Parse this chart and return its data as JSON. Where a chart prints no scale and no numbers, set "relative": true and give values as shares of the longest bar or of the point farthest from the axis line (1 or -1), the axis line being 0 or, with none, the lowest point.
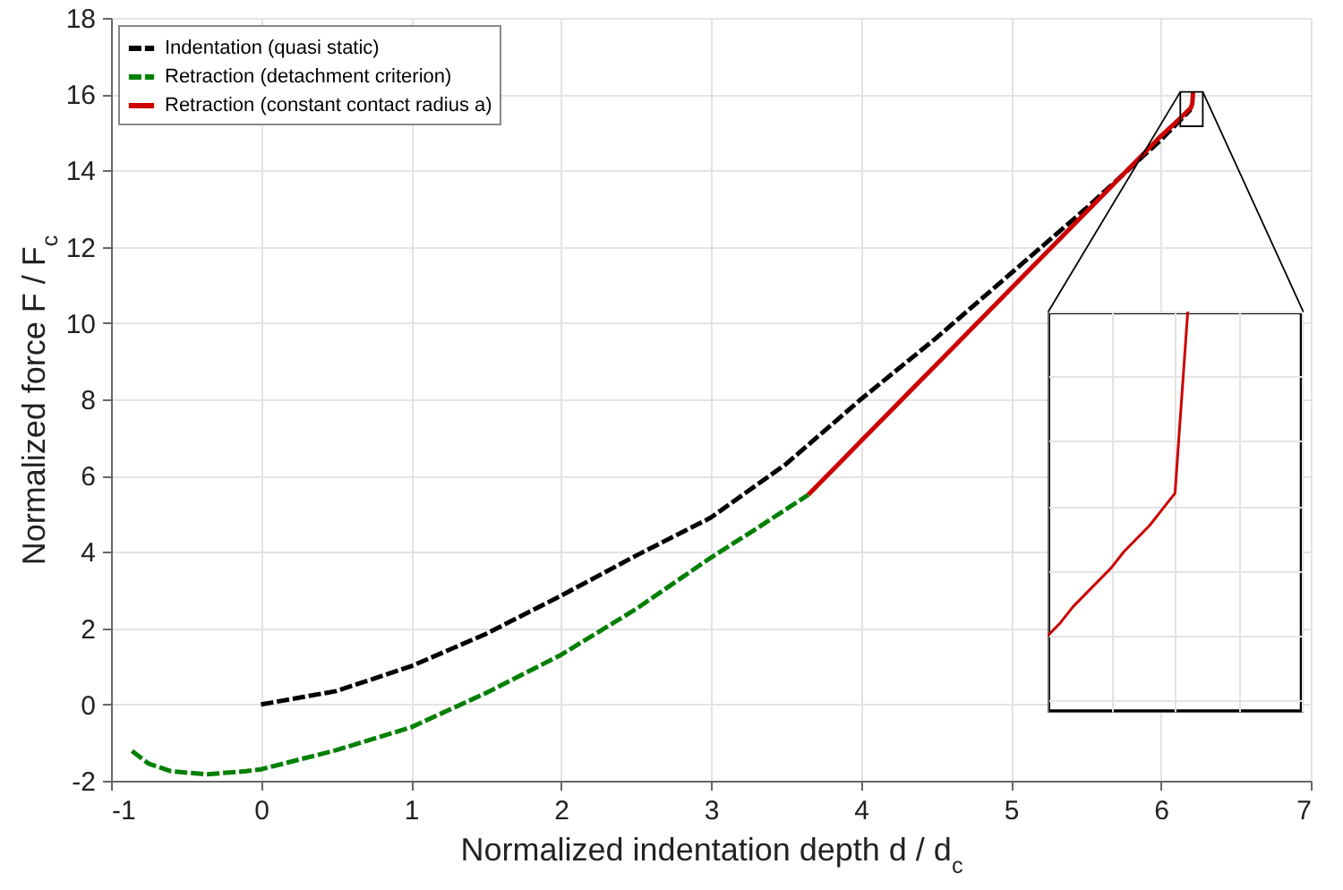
{
  "chart_data": [
    {
      "type": "line",
      "xlabel": "Normalized indentation depth  d / d$_{c}$",
      "ylabel": "Normalized force  F / F$_{c}$",
      "xlim": [
        -1,
        7
      ],
      "xticks": [
        -1,
        0,
        1,
        2,
        3,
        4,
        5,
        6,
        7
      ],
      "ylim": [
        -2,
        18
      ],
      "yticks": [
        -2,
        0,
        2,
        4,
        6,
        8,
        10,
        12,
        14,
        16,
        18
      ],
      "grid": true,
      "legend": "top left",
      "marker": "none",
      "series": [
        {
          "name": "Indentation (quasi static)",
          "color": "#000000",
          "line_style": "dashed",
          "x": [
            0,
            0.5,
            1,
            1.5,
            2,
            2.5,
            3,
            3.5,
            4,
            4.5,
            5,
            5.5,
            6,
            6.2
          ],
          "values": [
            0,
            0.35,
            1,
            1.85,
            2.85,
            3.9,
            4.9,
            6.3,
            8.0,
            9.6,
            11.3,
            13.0,
            14.8,
            15.6
          ]
        },
        {
          "name": "Retraction (detachment criterion)",
          "color": "#008000",
          "line_style": "dashed",
          "x": [
            -0.86,
            -0.75,
            -0.6,
            -0.36,
            -0.1,
            0,
            0.5,
            1,
            1.5,
            2,
            2.5,
            3,
            3.3,
            3.65
          ],
          "values": [
            -1.22,
            -1.55,
            -1.75,
            -1.83,
            -1.75,
            -1.7,
            -1.2,
            -0.6,
            0.3,
            1.3,
            2.5,
            3.85,
            4.6,
            5.5
          ]
        },
        {
          "name": "Retraction (constant contact radius a)",
          "color": "#cc0000",
          "line_style": "solid",
          "x": [
            3.65,
            4,
            4.5,
            5,
            5.5,
            6,
            6.13,
            6.2,
            6.21,
            6.215
          ],
          "values": [
            5.5,
            6.9,
            8.9,
            10.9,
            12.9,
            14.9,
            15.37,
            15.64,
            15.75,
            16.06
          ]
        }
      ]
    },
    {
      "type": "line",
      "relative": true,
      "grid": true,
      "marker": "none",
      "categories": [
        null,
        null,
        null,
        null,
        null,
        null,
        null,
        null,
        null,
        null,
        null,
        null,
        null,
        null,
        null,
        null,
        null,
        null,
        null,
        null,
        null
      ],
      "series": [
        {
          "color": "#cc0000",
          "line_style": "solid",
          "values": [
            0,
            0.04,
            0.09,
            0.13,
            0.17,
            0.21,
            0.26,
            0.3,
            0.34,
            0.39,
            0.44,
            1,
            null,
            null,
            null,
            null,
            null,
            null,
            null,
            null,
            null
          ]
        }
      ]
    }
  ]
}
